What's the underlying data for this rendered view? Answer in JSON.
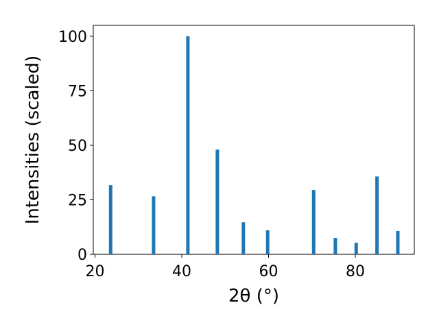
{
  "chart_data": {
    "type": "bar",
    "x_label": "2θ (°)",
    "y_label": "Intensities (scaled)",
    "x": [
      23.6,
      33.5,
      41.4,
      48.2,
      54.2,
      59.8,
      70.4,
      75.4,
      80.2,
      85.0,
      89.8
    ],
    "values": [
      31.7,
      26.6,
      100,
      48,
      14.7,
      11,
      29.5,
      7.5,
      5.3,
      35.7,
      10.7
    ],
    "color": "#1f77b4",
    "xlim": [
      19.6,
      93.6
    ],
    "xticks": [
      20,
      40,
      60,
      80
    ],
    "ylim": [
      0,
      105
    ],
    "yticks": [
      0,
      25,
      50,
      75,
      100
    ],
    "grid": false
  }
}
